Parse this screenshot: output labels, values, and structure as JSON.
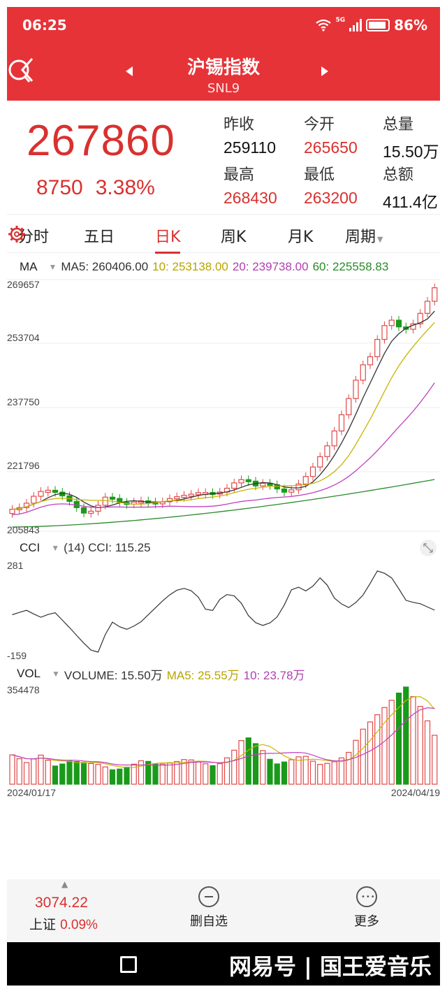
{
  "status_bar": {
    "time": "06:25",
    "battery": "86%",
    "network": "5G"
  },
  "header": {
    "title": "沪锡指数",
    "subtitle": "SNL9"
  },
  "quote": {
    "price": "267860",
    "change": "8750",
    "change_pct": "3.38%",
    "stats": [
      {
        "label": "昨收",
        "value": "259110",
        "color": "dark"
      },
      {
        "label": "今开",
        "value": "265650",
        "color": "red"
      },
      {
        "label": "总量",
        "value": "15.50万",
        "color": "dark"
      },
      {
        "label": "最高",
        "value": "268430",
        "color": "red"
      },
      {
        "label": "最低",
        "value": "263200",
        "color": "red"
      },
      {
        "label": "总额",
        "value": "411.4亿",
        "color": "dark"
      }
    ]
  },
  "tabs": [
    {
      "label": "分时"
    },
    {
      "label": "五日"
    },
    {
      "label": "日K",
      "active": true
    },
    {
      "label": "周K"
    },
    {
      "label": "月K"
    },
    {
      "label": "周期"
    }
  ],
  "ma_row": {
    "name": "MA",
    "ma5": "MA5: 260406.00",
    "ma10": "10: 253138.00",
    "ma20": "20: 239738.00",
    "ma60": "60: 225558.83"
  },
  "price_axis": [
    "269657",
    "253704",
    "237750",
    "221796",
    "205843"
  ],
  "cci_row": {
    "name": "CCI",
    "value": "(14) CCI: 115.25"
  },
  "cci_axis": [
    "281",
    "-159"
  ],
  "vol_row": {
    "name": "VOL",
    "volume": "VOLUME: 15.50万",
    "ma5": "MA5: 25.55万",
    "ma10": "10: 23.78万"
  },
  "vol_axis": [
    "354478"
  ],
  "dates": {
    "start": "2024/01/17",
    "end": "2024/04/19"
  },
  "colors": {
    "up": "#e04848",
    "down": "#1a9a1a",
    "ma5": "#333333",
    "ma10": "#c8b400",
    "ma20": "#c040c0",
    "ma60": "#2a8a2a",
    "brand": "#e63338"
  },
  "bottom": {
    "index_value": "3074.22",
    "index_name": "上证",
    "index_pct": "0.09%",
    "remove_label": "删自选",
    "more_label": "更多"
  },
  "watermark": "网易号 | 国王爱音乐"
}
